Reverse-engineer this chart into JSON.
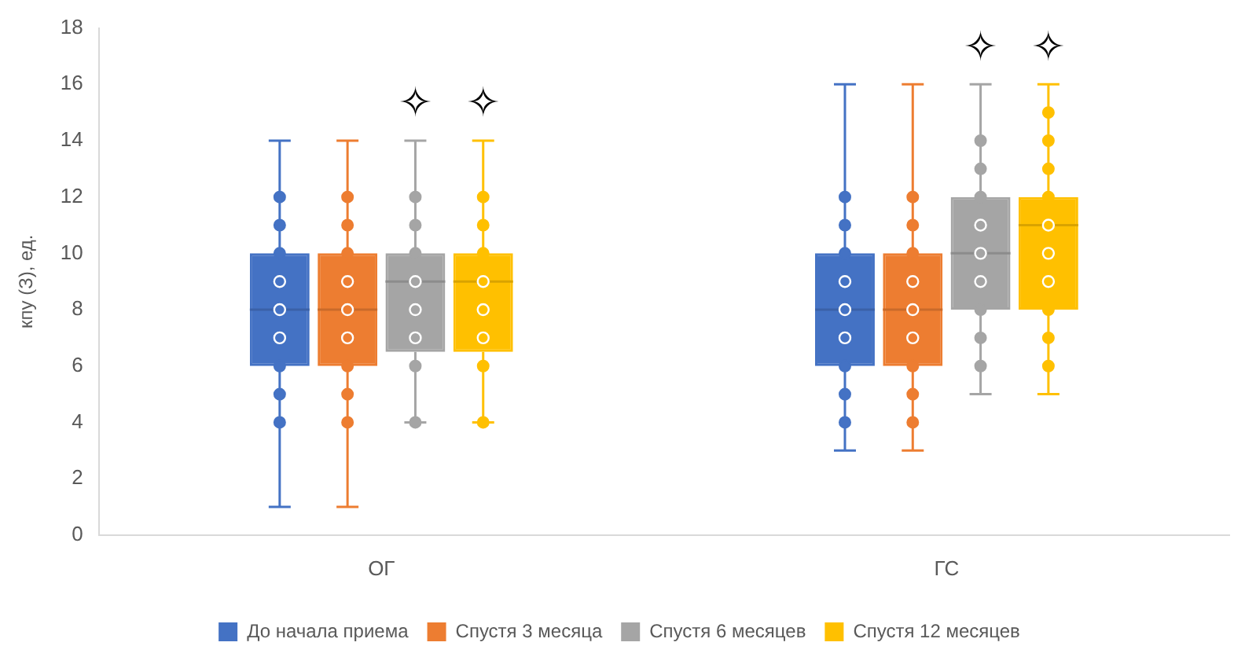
{
  "chart_data": {
    "type": "box",
    "ylabel": "кпу (З), ед.",
    "categories": [
      "ОГ",
      "ГС"
    ],
    "ylim": [
      0,
      18
    ],
    "yticks": [
      0,
      2,
      4,
      6,
      8,
      10,
      12,
      14,
      16,
      18
    ],
    "grid": false,
    "legend": "bottom",
    "marker": "circle",
    "series": [
      {
        "name": "До начала приема",
        "color": "#4472c4",
        "boxes": [
          {
            "low": 1,
            "q1": 6,
            "median": 8,
            "q3": 10,
            "high": 14
          },
          {
            "low": 3,
            "q1": 6,
            "median": 8,
            "q3": 10,
            "high": 16
          }
        ]
      },
      {
        "name": "Спустя 3 месяца",
        "color": "#ed7d31",
        "boxes": [
          {
            "low": 1,
            "q1": 6,
            "median": 8,
            "q3": 10,
            "high": 14
          },
          {
            "low": 3,
            "q1": 6,
            "median": 8,
            "q3": 10,
            "high": 16
          }
        ]
      },
      {
        "name": "Спустя 6 месяцев",
        "color": "#a5a5a5",
        "boxes": [
          {
            "low": 4,
            "q1": 6.5,
            "median": 9,
            "q3": 10,
            "high": 14
          },
          {
            "low": 5,
            "q1": 8,
            "median": 10,
            "q3": 12,
            "high": 16
          }
        ]
      },
      {
        "name": "Спустя 12 месяцев",
        "color": "#ffc000",
        "boxes": [
          {
            "low": 4,
            "q1": 6.5,
            "median": 9,
            "q3": 10,
            "high": 14
          },
          {
            "low": 5,
            "q1": 8,
            "median": 11,
            "q3": 12,
            "high": 16
          }
        ]
      },
      {
        "type": "scatter",
        "color": "#4472c4",
        "x": [
          "ОГ",
          "ОГ",
          "ОГ",
          "ОГ",
          "ОГ",
          "ОГ",
          "ОГ",
          "ОГ",
          "ОГ",
          "ГС",
          "ГС",
          "ГС",
          "ГС",
          "ГС",
          "ГС",
          "ГС",
          "ГС",
          "ГС"
        ],
        "values": [
          4,
          5,
          6,
          7,
          8,
          9,
          10,
          11,
          12,
          4,
          5,
          6,
          7,
          8,
          9,
          10,
          11,
          12
        ]
      },
      {
        "type": "scatter",
        "color": "#ed7d31",
        "x": [
          "ОГ",
          "ОГ",
          "ОГ",
          "ОГ",
          "ОГ",
          "ОГ",
          "ОГ",
          "ОГ",
          "ОГ",
          "ГС",
          "ГС",
          "ГС",
          "ГС",
          "ГС",
          "ГС",
          "ГС",
          "ГС",
          "ГС"
        ],
        "values": [
          4,
          5,
          6,
          7,
          8,
          9,
          10,
          11,
          12,
          4,
          5,
          6,
          7,
          8,
          9,
          10,
          11,
          12
        ]
      },
      {
        "type": "scatter",
        "color": "#a5a5a5",
        "x": [
          "ОГ",
          "ОГ",
          "ОГ",
          "ОГ",
          "ОГ",
          "ОГ",
          "ОГ",
          "ОГ",
          "ГС",
          "ГС",
          "ГС",
          "ГС",
          "ГС",
          "ГС",
          "ГС",
          "ГС",
          "ГС"
        ],
        "values": [
          4,
          6,
          7,
          8,
          9,
          10,
          11,
          12,
          6,
          7,
          8,
          9,
          10,
          11,
          12,
          13,
          14
        ]
      },
      {
        "type": "scatter",
        "color": "#ffc000",
        "x": [
          "ОГ",
          "ОГ",
          "ОГ",
          "ОГ",
          "ОГ",
          "ОГ",
          "ОГ",
          "ОГ",
          "ГС",
          "ГС",
          "ГС",
          "ГС",
          "ГС",
          "ГС",
          "ГС",
          "ГС",
          "ГС",
          "ГС"
        ],
        "values": [
          4,
          6,
          7,
          8,
          9,
          10,
          11,
          12,
          6,
          7,
          8,
          9,
          10,
          11,
          12,
          13,
          14,
          15
        ]
      }
    ],
    "annotations": [
      "✧",
      "✧",
      "✧",
      "✧"
    ]
  }
}
